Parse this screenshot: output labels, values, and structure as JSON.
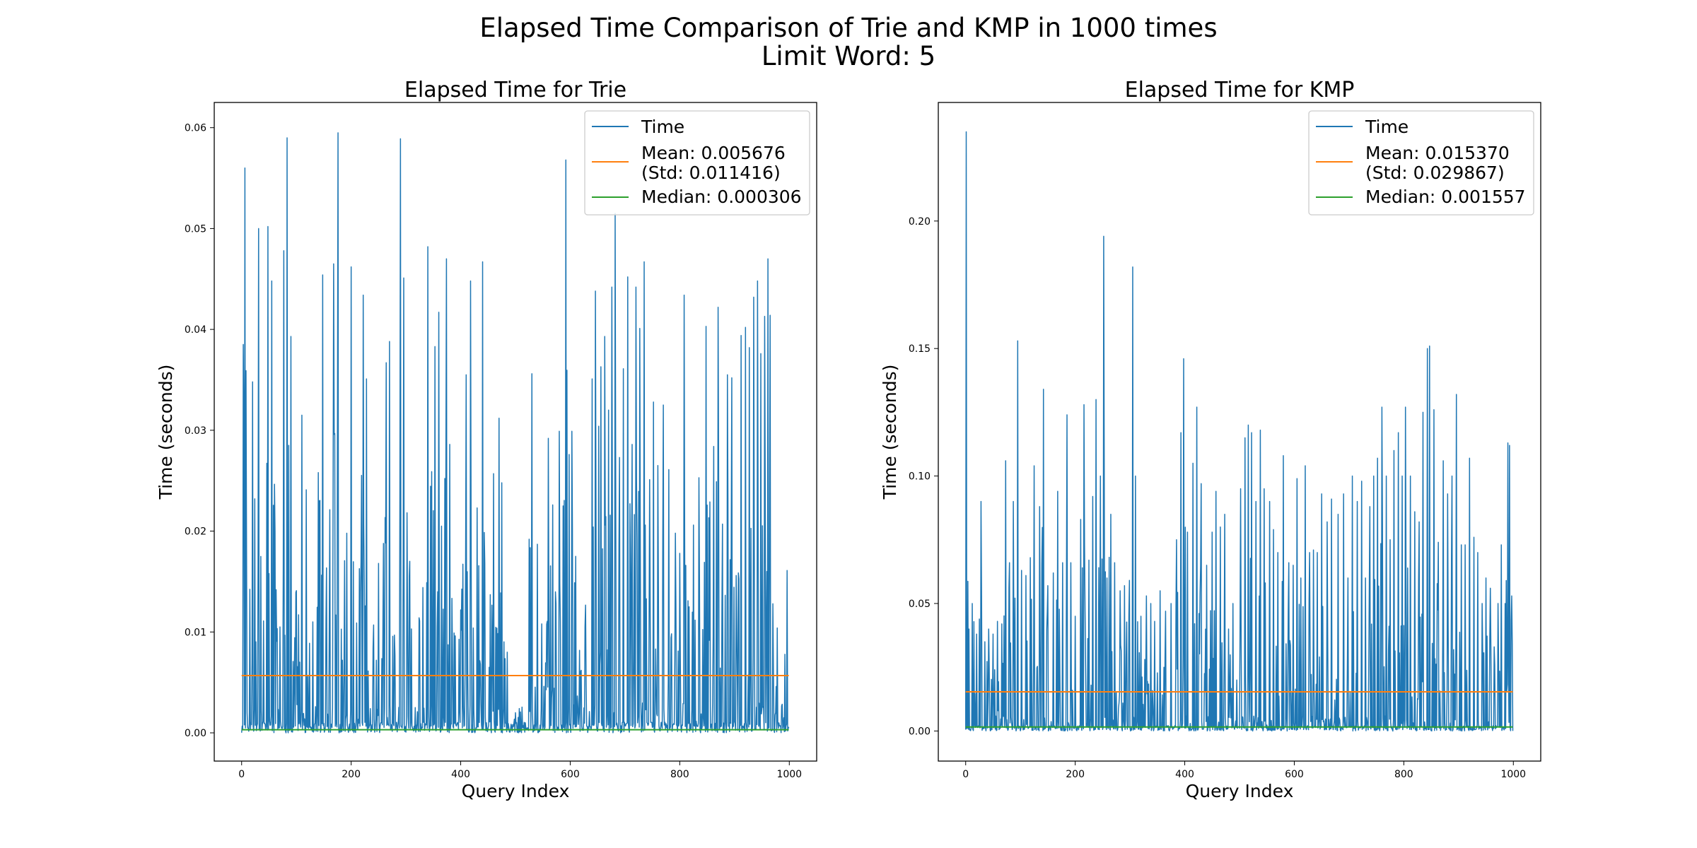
{
  "figure": {
    "title_line1": "Elapsed Time Comparison of Trie and KMP in 1000 times",
    "title_line2": "Limit Word: 5"
  },
  "colors": {
    "time": "#1f77b4",
    "mean": "#ff7f0e",
    "median": "#2ca02c"
  },
  "chart_data": [
    {
      "type": "line",
      "title": "Elapsed Time for Trie",
      "xlabel": "Query Index",
      "ylabel": "Time (seconds)",
      "xlim": [
        -50,
        1050
      ],
      "ylim": [
        -0.0028,
        0.0625
      ],
      "xticks": [
        0,
        200,
        400,
        600,
        800,
        1000
      ],
      "xtick_labels": [
        "0",
        "200",
        "400",
        "600",
        "800",
        "1000"
      ],
      "yticks": [
        0.0,
        0.01,
        0.02,
        0.03,
        0.04,
        0.05,
        0.06
      ],
      "ytick_labels": [
        "0.00",
        "0.01",
        "0.02",
        "0.03",
        "0.04",
        "0.05",
        "0.06"
      ],
      "legend_position": "top-right",
      "grid": false,
      "series": [
        {
          "name": "Time",
          "style": "spikes",
          "n_points": 1000,
          "peaks": [
            [
              3,
              0.0385
            ],
            [
              6,
              0.056
            ],
            [
              9,
              0.018
            ],
            [
              20,
              0.0348
            ],
            [
              24,
              0.0232
            ],
            [
              31,
              0.05
            ],
            [
              40,
              0.0111
            ],
            [
              48,
              0.0502
            ],
            [
              55,
              0.0448
            ],
            [
              60,
              0.0112
            ],
            [
              70,
              0.0105
            ],
            [
              77,
              0.0478
            ],
            [
              83,
              0.059
            ],
            [
              86,
              0.0285
            ],
            [
              90,
              0.0393
            ],
            [
              100,
              0.0141
            ],
            [
              110,
              0.0315
            ],
            [
              118,
              0.0241
            ],
            [
              130,
              0.011
            ],
            [
              140,
              0.0258
            ],
            [
              148,
              0.0454
            ],
            [
              160,
              0.0105
            ],
            [
              168,
              0.0465
            ],
            [
              176,
              0.0595
            ],
            [
              184,
              0.0072
            ],
            [
              192,
              0.0198
            ],
            [
              200,
              0.0462
            ],
            [
              210,
              0.0109
            ],
            [
              222,
              0.0434
            ],
            [
              228,
              0.0351
            ],
            [
              240,
              0.0084
            ],
            [
              250,
              0.0168
            ],
            [
              258,
              0.0109
            ],
            [
              264,
              0.0367
            ],
            [
              270,
              0.0388
            ],
            [
              280,
              0.0077
            ],
            [
              290,
              0.0589
            ],
            [
              296,
              0.0451
            ],
            [
              302,
              0.0161
            ],
            [
              310,
              0.0103
            ],
            [
              325,
              0.0111
            ],
            [
              340,
              0.0482
            ],
            [
              347,
              0.0259
            ],
            [
              353,
              0.0383
            ],
            [
              360,
              0.0417
            ],
            [
              365,
              0.0205
            ],
            [
              374,
              0.047
            ],
            [
              380,
              0.0286
            ],
            [
              388,
              0.0099
            ],
            [
              400,
              0.0045
            ],
            [
              410,
              0.0355
            ],
            [
              418,
              0.0448
            ],
            [
              423,
              0.0104
            ],
            [
              430,
              0.0223
            ],
            [
              440,
              0.0467
            ],
            [
              452,
              0.0065
            ],
            [
              460,
              0.0257
            ],
            [
              470,
              0.0312
            ],
            [
              475,
              0.0248
            ],
            [
              485,
              0.008
            ],
            [
              500,
              0.002
            ],
            [
              520,
              0.0003
            ],
            [
              525,
              0.0192
            ],
            [
              530,
              0.0356
            ],
            [
              540,
              0.0187
            ],
            [
              548,
              0.0108
            ],
            [
              560,
              0.0292
            ],
            [
              568,
              0.0226
            ],
            [
              580,
              0.0299
            ],
            [
              587,
              0.0225
            ],
            [
              592,
              0.0568
            ],
            [
              598,
              0.0276
            ],
            [
              603,
              0.0299
            ],
            [
              610,
              0.0175
            ],
            [
              620,
              0.0062
            ],
            [
              640,
              0.0351
            ],
            [
              646,
              0.0438
            ],
            [
              652,
              0.0304
            ],
            [
              656,
              0.0363
            ],
            [
              663,
              0.0393
            ],
            [
              670,
              0.032
            ],
            [
              676,
              0.0442
            ],
            [
              682,
              0.0515
            ],
            [
              690,
              0.0273
            ],
            [
              697,
              0.0361
            ],
            [
              705,
              0.0452
            ],
            [
              713,
              0.0286
            ],
            [
              720,
              0.0442
            ],
            [
              727,
              0.0401
            ],
            [
              735,
              0.0467
            ],
            [
              745,
              0.0251
            ],
            [
              752,
              0.0328
            ],
            [
              760,
              0.0265
            ],
            [
              770,
              0.0325
            ],
            [
              780,
              0.0261
            ],
            [
              792,
              0.0198
            ],
            [
              800,
              0.0178
            ],
            [
              808,
              0.0434
            ],
            [
              815,
              0.0131
            ],
            [
              825,
              0.0206
            ],
            [
              835,
              0.0253
            ],
            [
              848,
              0.0403
            ],
            [
              855,
              0.0229
            ],
            [
              862,
              0.0284
            ],
            [
              870,
              0.0422
            ],
            [
              878,
              0.0207
            ],
            [
              887,
              0.0355
            ],
            [
              895,
              0.0352
            ],
            [
              903,
              0.0156
            ],
            [
              912,
              0.0394
            ],
            [
              920,
              0.0402
            ],
            [
              927,
              0.0382
            ],
            [
              935,
              0.0432
            ],
            [
              942,
              0.0448
            ],
            [
              948,
              0.0376
            ],
            [
              955,
              0.0413
            ],
            [
              961,
              0.047
            ],
            [
              965,
              0.0414
            ],
            [
              970,
              0.0128
            ],
            [
              978,
              0.0072
            ],
            [
              990,
              0.0015
            ],
            [
              996,
              0.0161
            ]
          ],
          "base_max": 0.003
        },
        {
          "name": "Mean: 0.005676\n(Std: 0.011416)",
          "style": "hline",
          "value": 0.005676,
          "std": 0.011416
        },
        {
          "name": "Median: 0.000306",
          "style": "hline",
          "value": 0.000306
        }
      ]
    },
    {
      "type": "line",
      "title": "Elapsed Time for KMP",
      "xlabel": "Query Index",
      "ylabel": "Time (seconds)",
      "xlim": [
        -50,
        1050
      ],
      "ylim": [
        -0.0118,
        0.2465
      ],
      "xticks": [
        0,
        200,
        400,
        600,
        800,
        1000
      ],
      "xtick_labels": [
        "0",
        "200",
        "400",
        "600",
        "800",
        "1000"
      ],
      "yticks": [
        0.0,
        0.05,
        0.1,
        0.15,
        0.2
      ],
      "ytick_labels": [
        "0.00",
        "0.05",
        "0.10",
        "0.15",
        "0.20"
      ],
      "legend_position": "top-right",
      "grid": false,
      "series": [
        {
          "name": "Time",
          "style": "spikes",
          "n_points": 1000,
          "peaks": [
            [
              1,
              0.235
            ],
            [
              6,
              0.04
            ],
            [
              12,
              0.05
            ],
            [
              20,
              0.038
            ],
            [
              28,
              0.09
            ],
            [
              35,
              0.035
            ],
            [
              42,
              0.04
            ],
            [
              50,
              0.038
            ],
            [
              58,
              0.043
            ],
            [
              66,
              0.042
            ],
            [
              73,
              0.106
            ],
            [
              80,
              0.066
            ],
            [
              87,
              0.09
            ],
            [
              95,
              0.153
            ],
            [
              102,
              0.063
            ],
            [
              110,
              0.061
            ],
            [
              118,
              0.068
            ],
            [
              125,
              0.104
            ],
            [
              135,
              0.088
            ],
            [
              142,
              0.134
            ],
            [
              150,
              0.057
            ],
            [
              160,
              0.062
            ],
            [
              168,
              0.094
            ],
            [
              177,
              0.066
            ],
            [
              185,
              0.124
            ],
            [
              192,
              0.066
            ],
            [
              200,
              0.045
            ],
            [
              210,
              0.083
            ],
            [
              216,
              0.128
            ],
            [
              225,
              0.067
            ],
            [
              232,
              0.092
            ],
            [
              238,
              0.13
            ],
            [
              246,
              0.1
            ],
            [
              252,
              0.194
            ],
            [
              258,
              0.06
            ],
            [
              265,
              0.085
            ],
            [
              272,
              0.066
            ],
            [
              282,
              0.055
            ],
            [
              290,
              0.057
            ],
            [
              298,
              0.045
            ],
            [
              305,
              0.182
            ],
            [
              310,
              0.1
            ],
            [
              320,
              0.045
            ],
            [
              330,
              0.053
            ],
            [
              338,
              0.05
            ],
            [
              345,
              0.043
            ],
            [
              355,
              0.055
            ],
            [
              365,
              0.047
            ],
            [
              375,
              0.05
            ],
            [
              385,
              0.075
            ],
            [
              393,
              0.117
            ],
            [
              398,
              0.146
            ],
            [
              405,
              0.078
            ],
            [
              415,
              0.105
            ],
            [
              422,
              0.127
            ],
            [
              430,
              0.097
            ],
            [
              440,
              0.065
            ],
            [
              450,
              0.078
            ],
            [
              457,
              0.094
            ],
            [
              465,
              0.08
            ],
            [
              473,
              0.085
            ],
            [
              480,
              0.04
            ],
            [
              488,
              0.05
            ],
            [
              495,
              0.02
            ],
            [
              502,
              0.095
            ],
            [
              510,
              0.115
            ],
            [
              516,
              0.12
            ],
            [
              522,
              0.117
            ],
            [
              530,
              0.09
            ],
            [
              538,
              0.118
            ],
            [
              545,
              0.095
            ],
            [
              555,
              0.09
            ],
            [
              562,
              0.079
            ],
            [
              570,
              0.07
            ],
            [
              580,
              0.108
            ],
            [
              590,
              0.066
            ],
            [
              598,
              0.065
            ],
            [
              605,
              0.099
            ],
            [
              612,
              0.06
            ],
            [
              620,
              0.104
            ],
            [
              628,
              0.07
            ],
            [
              635,
              0.071
            ],
            [
              642,
              0.07
            ],
            [
              650,
              0.093
            ],
            [
              660,
              0.082
            ],
            [
              668,
              0.091
            ],
            [
              680,
              0.085
            ],
            [
              690,
              0.093
            ],
            [
              698,
              0.06
            ],
            [
              706,
              0.1
            ],
            [
              715,
              0.09
            ],
            [
              723,
              0.098
            ],
            [
              730,
              0.06
            ],
            [
              738,
              0.088
            ],
            [
              745,
              0.1
            ],
            [
              752,
              0.107
            ],
            [
              760,
              0.127
            ],
            [
              768,
              0.1
            ],
            [
              775,
              0.075
            ],
            [
              782,
              0.11
            ],
            [
              790,
              0.117
            ],
            [
              797,
              0.1
            ],
            [
              803,
              0.127
            ],
            [
              812,
              0.1
            ],
            [
              820,
              0.086
            ],
            [
              828,
              0.082
            ],
            [
              835,
              0.125
            ],
            [
              843,
              0.15
            ],
            [
              847,
              0.151
            ],
            [
              855,
              0.126
            ],
            [
              863,
              0.074
            ],
            [
              872,
              0.106
            ],
            [
              880,
              0.093
            ],
            [
              888,
              0.1
            ],
            [
              896,
              0.132
            ],
            [
              905,
              0.073
            ],
            [
              912,
              0.073
            ],
            [
              920,
              0.107
            ],
            [
              928,
              0.076
            ],
            [
              935,
              0.07
            ],
            [
              943,
              0.05
            ],
            [
              950,
              0.06
            ],
            [
              958,
              0.056
            ],
            [
              965,
              0.033
            ],
            [
              972,
              0.05
            ],
            [
              978,
              0.073
            ],
            [
              985,
              0.05
            ],
            [
              990,
              0.113
            ],
            [
              993,
              0.112
            ],
            [
              997,
              0.053
            ]
          ],
          "base_max": 0.006
        },
        {
          "name": "Mean: 0.015370\n(Std: 0.029867)",
          "style": "hline",
          "value": 0.01537,
          "std": 0.029867
        },
        {
          "name": "Median: 0.001557",
          "style": "hline",
          "value": 0.001557
        }
      ]
    }
  ]
}
